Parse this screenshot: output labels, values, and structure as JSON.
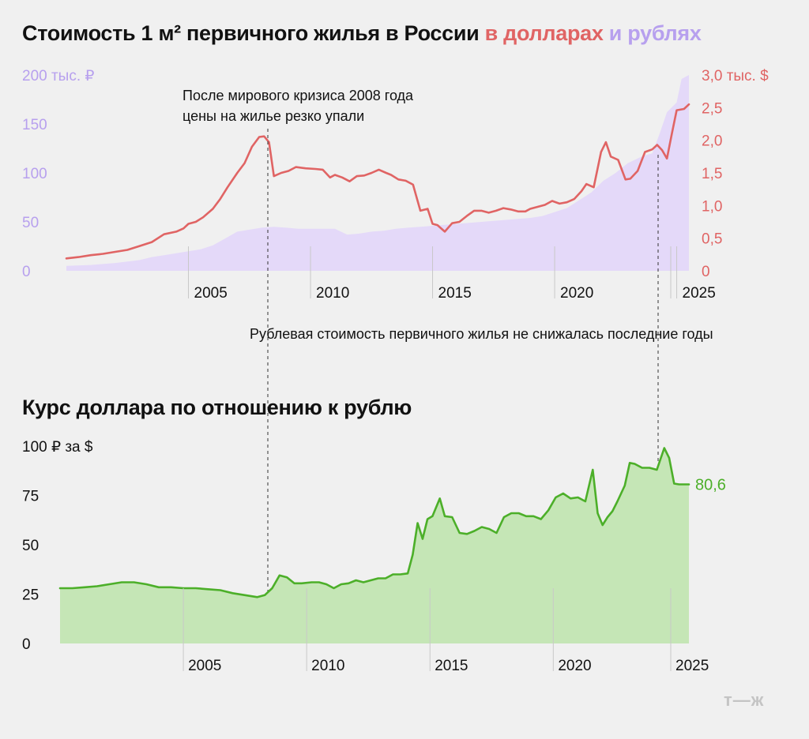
{
  "colors": {
    "background": "#f0f0f0",
    "usd_line": "#e06464",
    "rub_area": "#e4d9f9",
    "rub_text": "#b7a0ee",
    "fx_line": "#4caf29",
    "fx_area": "#c5e6b6",
    "text": "#111111"
  },
  "header": {
    "title_main": "Стоимость 1 м² первичного жилья в России",
    "title_usd": "в долларах",
    "title_rub": "и рублях"
  },
  "annotations": {
    "crisis_line1": "После мирового кризиса 2008 года",
    "crisis_line2": "цены на жилье резко упали",
    "ruble": "Рублевая стоимость первичного жилья не снижалась последние годы"
  },
  "fx_title": "Курс доллара по отношению к рублю",
  "logo": "т—ж",
  "chart_data": [
    {
      "type": "area+line",
      "title": "Стоимость 1 м² первичного жилья в России в долларах и рублях",
      "xlim": [
        2000.0,
        2025.5
      ],
      "x_ticks": [
        {
          "value": 2005,
          "label": "2005"
        },
        {
          "value": 2010,
          "label": "2010"
        },
        {
          "value": 2015,
          "label": "2015"
        },
        {
          "value": 2020,
          "label": "2020"
        },
        {
          "value": 2025,
          "label": "2025"
        }
      ],
      "y_left": {
        "ylim": [
          0,
          200
        ],
        "ticks": [
          {
            "value": 200,
            "label": "200 тыс. ₽"
          },
          {
            "value": 150,
            "label": "150"
          },
          {
            "value": 100,
            "label": "100"
          },
          {
            "value": 50,
            "label": "50"
          },
          {
            "value": 0,
            "label": "0"
          }
        ]
      },
      "y_right": {
        "ylim": [
          0,
          3.0
        ],
        "ticks": [
          {
            "value": 3.0,
            "label": "3,0 тыс. $"
          },
          {
            "value": 2.5,
            "label": "2,5"
          },
          {
            "value": 2.0,
            "label": "2,0"
          },
          {
            "value": 1.5,
            "label": "1,5"
          },
          {
            "value": 1.0,
            "label": "1,0"
          },
          {
            "value": 0.5,
            "label": "0,5"
          },
          {
            "value": 0,
            "label": "0"
          }
        ]
      },
      "series": [
        {
          "name": "в рублях (тыс. ₽)",
          "axis": "left",
          "style": "area",
          "x": [
            2000.0,
            2001.0,
            2002.0,
            2003.0,
            2003.5,
            2004.0,
            2004.5,
            2005.0,
            2005.5,
            2006.0,
            2006.5,
            2007.0,
            2007.5,
            2008.0,
            2008.5,
            2009.0,
            2009.5,
            2010.0,
            2010.5,
            2011.0,
            2011.5,
            2012.0,
            2012.5,
            2013.0,
            2013.5,
            2014.0,
            2014.5,
            2015.0,
            2015.5,
            2016.0,
            2016.5,
            2017.0,
            2017.5,
            2018.0,
            2018.5,
            2019.0,
            2019.5,
            2020.0,
            2020.5,
            2021.0,
            2021.5,
            2022.0,
            2022.5,
            2023.0,
            2023.5,
            2023.7,
            2024.0,
            2024.3,
            2024.6,
            2025.0,
            2025.2,
            2025.5
          ],
          "values": [
            5,
            6,
            8,
            11,
            14,
            16,
            18,
            20,
            22,
            26,
            33,
            40,
            42,
            44,
            45,
            44,
            43,
            43,
            43,
            43,
            37,
            38,
            40,
            41,
            43,
            44,
            45,
            46,
            47,
            48,
            49,
            50,
            51,
            52,
            53,
            54,
            56,
            60,
            64,
            72,
            80,
            92,
            100,
            110,
            116,
            118,
            120,
            140,
            162,
            172,
            196,
            200
          ]
        },
        {
          "name": "в долларах (тыс. $)",
          "axis": "right",
          "style": "line",
          "x": [
            2000.0,
            2000.5,
            2001.0,
            2001.5,
            2002.0,
            2002.5,
            2003.0,
            2003.5,
            2004.0,
            2004.5,
            2004.8,
            2005.0,
            2005.3,
            2005.6,
            2006.0,
            2006.3,
            2006.6,
            2007.0,
            2007.3,
            2007.6,
            2007.9,
            2008.1,
            2008.3,
            2008.5,
            2008.8,
            2009.1,
            2009.4,
            2009.8,
            2010.2,
            2010.5,
            2010.8,
            2011.0,
            2011.3,
            2011.6,
            2011.9,
            2012.2,
            2012.5,
            2012.8,
            2013.1,
            2013.3,
            2013.6,
            2013.9,
            2014.2,
            2014.5,
            2014.8,
            2015.0,
            2015.2,
            2015.5,
            2015.8,
            2016.1,
            2016.4,
            2016.7,
            2017.0,
            2017.3,
            2017.6,
            2017.9,
            2018.2,
            2018.5,
            2018.8,
            2019.0,
            2019.3,
            2019.6,
            2019.9,
            2020.2,
            2020.5,
            2020.8,
            2021.1,
            2021.3,
            2021.6,
            2021.9,
            2022.1,
            2022.3,
            2022.6,
            2022.9,
            2023.1,
            2023.4,
            2023.7,
            2024.0,
            2024.2,
            2024.4,
            2024.6,
            2024.8,
            2025.0,
            2025.3,
            2025.5
          ],
          "values": [
            0.19,
            0.21,
            0.24,
            0.26,
            0.29,
            0.32,
            0.38,
            0.44,
            0.56,
            0.6,
            0.65,
            0.72,
            0.75,
            0.82,
            0.95,
            1.1,
            1.28,
            1.5,
            1.65,
            1.9,
            2.05,
            2.06,
            1.97,
            1.45,
            1.5,
            1.53,
            1.59,
            1.57,
            1.56,
            1.55,
            1.43,
            1.47,
            1.43,
            1.37,
            1.45,
            1.46,
            1.5,
            1.55,
            1.5,
            1.47,
            1.4,
            1.38,
            1.32,
            0.92,
            0.95,
            0.72,
            0.7,
            0.6,
            0.73,
            0.75,
            0.84,
            0.92,
            0.92,
            0.89,
            0.92,
            0.96,
            0.94,
            0.91,
            0.91,
            0.95,
            0.98,
            1.01,
            1.07,
            1.03,
            1.05,
            1.1,
            1.22,
            1.33,
            1.28,
            1.82,
            1.97,
            1.75,
            1.7,
            1.4,
            1.41,
            1.53,
            1.82,
            1.86,
            1.93,
            1.85,
            1.72,
            2.1,
            2.46,
            2.48,
            2.55
          ]
        }
      ]
    },
    {
      "type": "area",
      "title": "Курс доллара по отношению к рублю",
      "xlim": [
        2000.0,
        2025.5
      ],
      "ylim": [
        0,
        100
      ],
      "x_ticks": [
        {
          "value": 2005,
          "label": "2005"
        },
        {
          "value": 2010,
          "label": "2010"
        },
        {
          "value": 2015,
          "label": "2015"
        },
        {
          "value": 2020,
          "label": "2020"
        },
        {
          "value": 2025,
          "label": "2025"
        }
      ],
      "y_ticks": [
        {
          "value": 100,
          "label": "100 ₽ за $"
        },
        {
          "value": 75,
          "label": "75"
        },
        {
          "value": 50,
          "label": "50"
        },
        {
          "value": 25,
          "label": "25"
        },
        {
          "value": 0,
          "label": "0"
        }
      ],
      "series": [
        {
          "name": "Курс доллара, ₽",
          "x": [
            2000.0,
            2000.5,
            2001.0,
            2001.5,
            2002.0,
            2002.5,
            2003.0,
            2003.5,
            2004.0,
            2004.5,
            2005.0,
            2005.5,
            2006.0,
            2006.5,
            2007.0,
            2007.5,
            2008.0,
            2008.3,
            2008.6,
            2008.9,
            2009.2,
            2009.5,
            2009.8,
            2010.2,
            2010.5,
            2010.8,
            2011.1,
            2011.4,
            2011.7,
            2012.0,
            2012.3,
            2012.6,
            2012.9,
            2013.2,
            2013.5,
            2013.8,
            2014.1,
            2014.3,
            2014.5,
            2014.7,
            2014.9,
            2015.1,
            2015.4,
            2015.6,
            2015.9,
            2016.2,
            2016.5,
            2016.8,
            2017.1,
            2017.4,
            2017.7,
            2018.0,
            2018.3,
            2018.6,
            2018.9,
            2019.2,
            2019.5,
            2019.8,
            2020.1,
            2020.4,
            2020.7,
            2021.0,
            2021.3,
            2021.6,
            2021.8,
            2022.0,
            2022.2,
            2022.4,
            2022.6,
            2022.9,
            2023.1,
            2023.3,
            2023.6,
            2023.9,
            2024.2,
            2024.5,
            2024.7,
            2024.9,
            2025.1,
            2025.3,
            2025.5
          ],
          "values": [
            28,
            28,
            28.5,
            29,
            30,
            31,
            31,
            30,
            28.5,
            28.5,
            28,
            28,
            27.5,
            27,
            25.5,
            24.5,
            23.5,
            24.5,
            28,
            34.5,
            33.5,
            30.5,
            30.5,
            31,
            31,
            30,
            28,
            30,
            30.5,
            32,
            31,
            32,
            33,
            33,
            35,
            35,
            35.5,
            45,
            61,
            53,
            63,
            64.5,
            73.5,
            64.5,
            64,
            56,
            55.5,
            57,
            59,
            58,
            56,
            64,
            66,
            66,
            64.5,
            64.5,
            63,
            67.5,
            74,
            76,
            73.5,
            74,
            72,
            88,
            66,
            60,
            64,
            67,
            72,
            80,
            91.5,
            91,
            89,
            89,
            88,
            99,
            94,
            81,
            80.6,
            80.6,
            80.6
          ],
          "last_label": "80,6"
        }
      ]
    }
  ]
}
